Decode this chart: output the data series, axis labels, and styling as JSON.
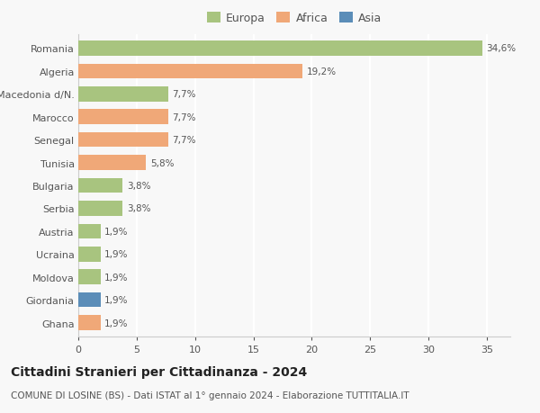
{
  "countries": [
    "Romania",
    "Algeria",
    "Macedonia d/N.",
    "Marocco",
    "Senegal",
    "Tunisia",
    "Bulgaria",
    "Serbia",
    "Austria",
    "Ucraina",
    "Moldova",
    "Giordania",
    "Ghana"
  ],
  "values": [
    34.6,
    19.2,
    7.7,
    7.7,
    7.7,
    5.8,
    3.8,
    3.8,
    1.9,
    1.9,
    1.9,
    1.9,
    1.9
  ],
  "labels": [
    "34,6%",
    "19,2%",
    "7,7%",
    "7,7%",
    "7,7%",
    "5,8%",
    "3,8%",
    "3,8%",
    "1,9%",
    "1,9%",
    "1,9%",
    "1,9%",
    "1,9%"
  ],
  "continents": [
    "Europa",
    "Africa",
    "Europa",
    "Africa",
    "Africa",
    "Africa",
    "Europa",
    "Europa",
    "Europa",
    "Europa",
    "Europa",
    "Asia",
    "Africa"
  ],
  "colors": {
    "Europa": "#a8c47f",
    "Africa": "#f0a878",
    "Asia": "#5b8db8"
  },
  "xlim": [
    0,
    37
  ],
  "xticks": [
    0,
    5,
    10,
    15,
    20,
    25,
    30,
    35
  ],
  "title": "Cittadini Stranieri per Cittadinanza - 2024",
  "subtitle": "COMUNE DI LOSINE (BS) - Dati ISTAT al 1° gennaio 2024 - Elaborazione TUTTITALIA.IT",
  "background_color": "#f8f8f8",
  "bar_height": 0.65,
  "label_fontsize": 7.5,
  "ytick_fontsize": 8,
  "xtick_fontsize": 8,
  "title_fontsize": 10,
  "subtitle_fontsize": 7.5,
  "grid_color": "#ffffff",
  "legend_marker_size": 10
}
